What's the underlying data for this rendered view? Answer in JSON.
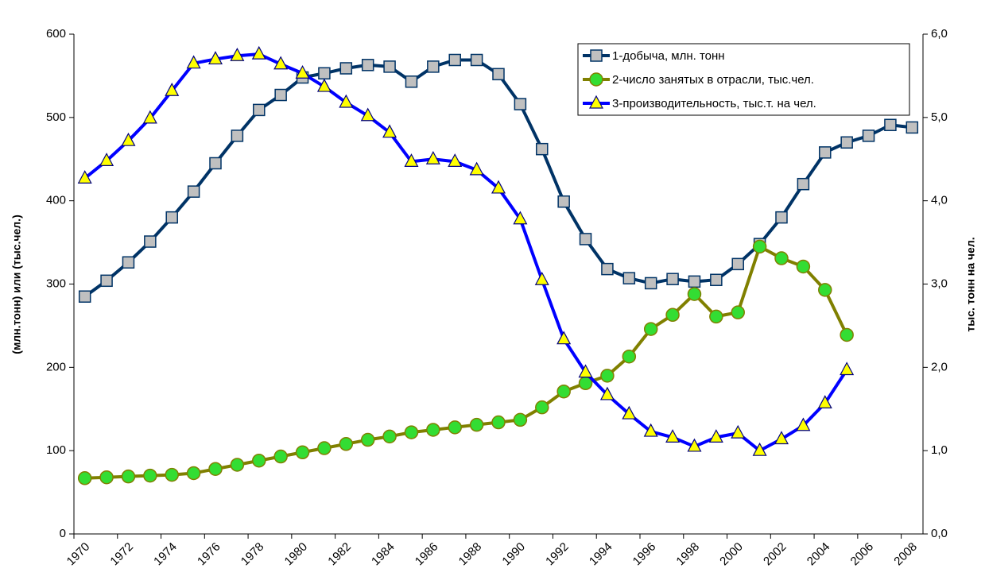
{
  "chart_data": {
    "type": "line",
    "ylabel": "(млн.тонн) или (тыс.чел.)",
    "y2label": "тыс. тонн на чел.",
    "categories": [
      "1970",
      null,
      "1972",
      null,
      "1974",
      null,
      "1976",
      null,
      "1978",
      null,
      "1980",
      null,
      "1982",
      null,
      "1984",
      null,
      "1986",
      null,
      "1988",
      null,
      "1990",
      null,
      "1992",
      null,
      "1994",
      null,
      "1996",
      null,
      "1998",
      null,
      "2000",
      null,
      "2002",
      null,
      "2004",
      null,
      "2006",
      null,
      "2008"
    ],
    "ylim": [
      0,
      600
    ],
    "yticks": [
      0,
      100,
      200,
      300,
      400,
      500,
      600
    ],
    "y2lim": [
      0,
      6
    ],
    "y2ticks": [
      {
        "value": 0,
        "label": "0,0"
      },
      {
        "value": 1,
        "label": "1,0"
      },
      {
        "value": 2,
        "label": "2,0"
      },
      {
        "value": 3,
        "label": "3,0"
      },
      {
        "value": 4,
        "label": "4,0"
      },
      {
        "value": 5,
        "label": "5,0"
      },
      {
        "value": 6,
        "label": "6,0"
      }
    ],
    "legend": "upper right",
    "series": [
      {
        "name": "1-добыча, млн. тонн",
        "color": "#003366",
        "marker": "square",
        "values": [
          285,
          304,
          326,
          351,
          380,
          411,
          445,
          478,
          509,
          527,
          548,
          553,
          559,
          563,
          561,
          543,
          561,
          569,
          569,
          552,
          516,
          462,
          399,
          354,
          318,
          307,
          301,
          306,
          303,
          305,
          324,
          348,
          380,
          420,
          458,
          470,
          478,
          491,
          488
        ]
      },
      {
        "name": "2-число занятых в отрасли, тыс.чел.",
        "color": "#808000",
        "marker": "circle",
        "values": [
          67,
          68,
          69,
          70,
          71,
          73,
          78,
          83,
          88,
          93,
          98,
          103,
          108,
          113,
          117,
          122,
          125,
          128,
          131,
          134,
          137,
          152,
          171,
          181,
          190,
          213,
          246,
          263,
          288,
          261,
          266,
          345,
          331,
          321,
          293,
          239,
          null,
          null,
          null
        ]
      },
      {
        "name": "3-производительность, тыс.т. на чел.",
        "color": "#0000ff",
        "marker": "triangle",
        "axis": "y2",
        "values": [
          4.27,
          4.48,
          4.72,
          4.99,
          5.32,
          5.65,
          5.7,
          5.74,
          5.76,
          5.64,
          5.53,
          5.37,
          5.18,
          5.02,
          4.82,
          4.47,
          4.5,
          4.47,
          4.37,
          4.15,
          3.78,
          3.05,
          2.34,
          1.94,
          1.67,
          1.44,
          1.23,
          1.16,
          1.05,
          1.16,
          1.21,
          1.0,
          1.14,
          1.3,
          1.57,
          1.97,
          null,
          null,
          null
        ]
      }
    ]
  }
}
